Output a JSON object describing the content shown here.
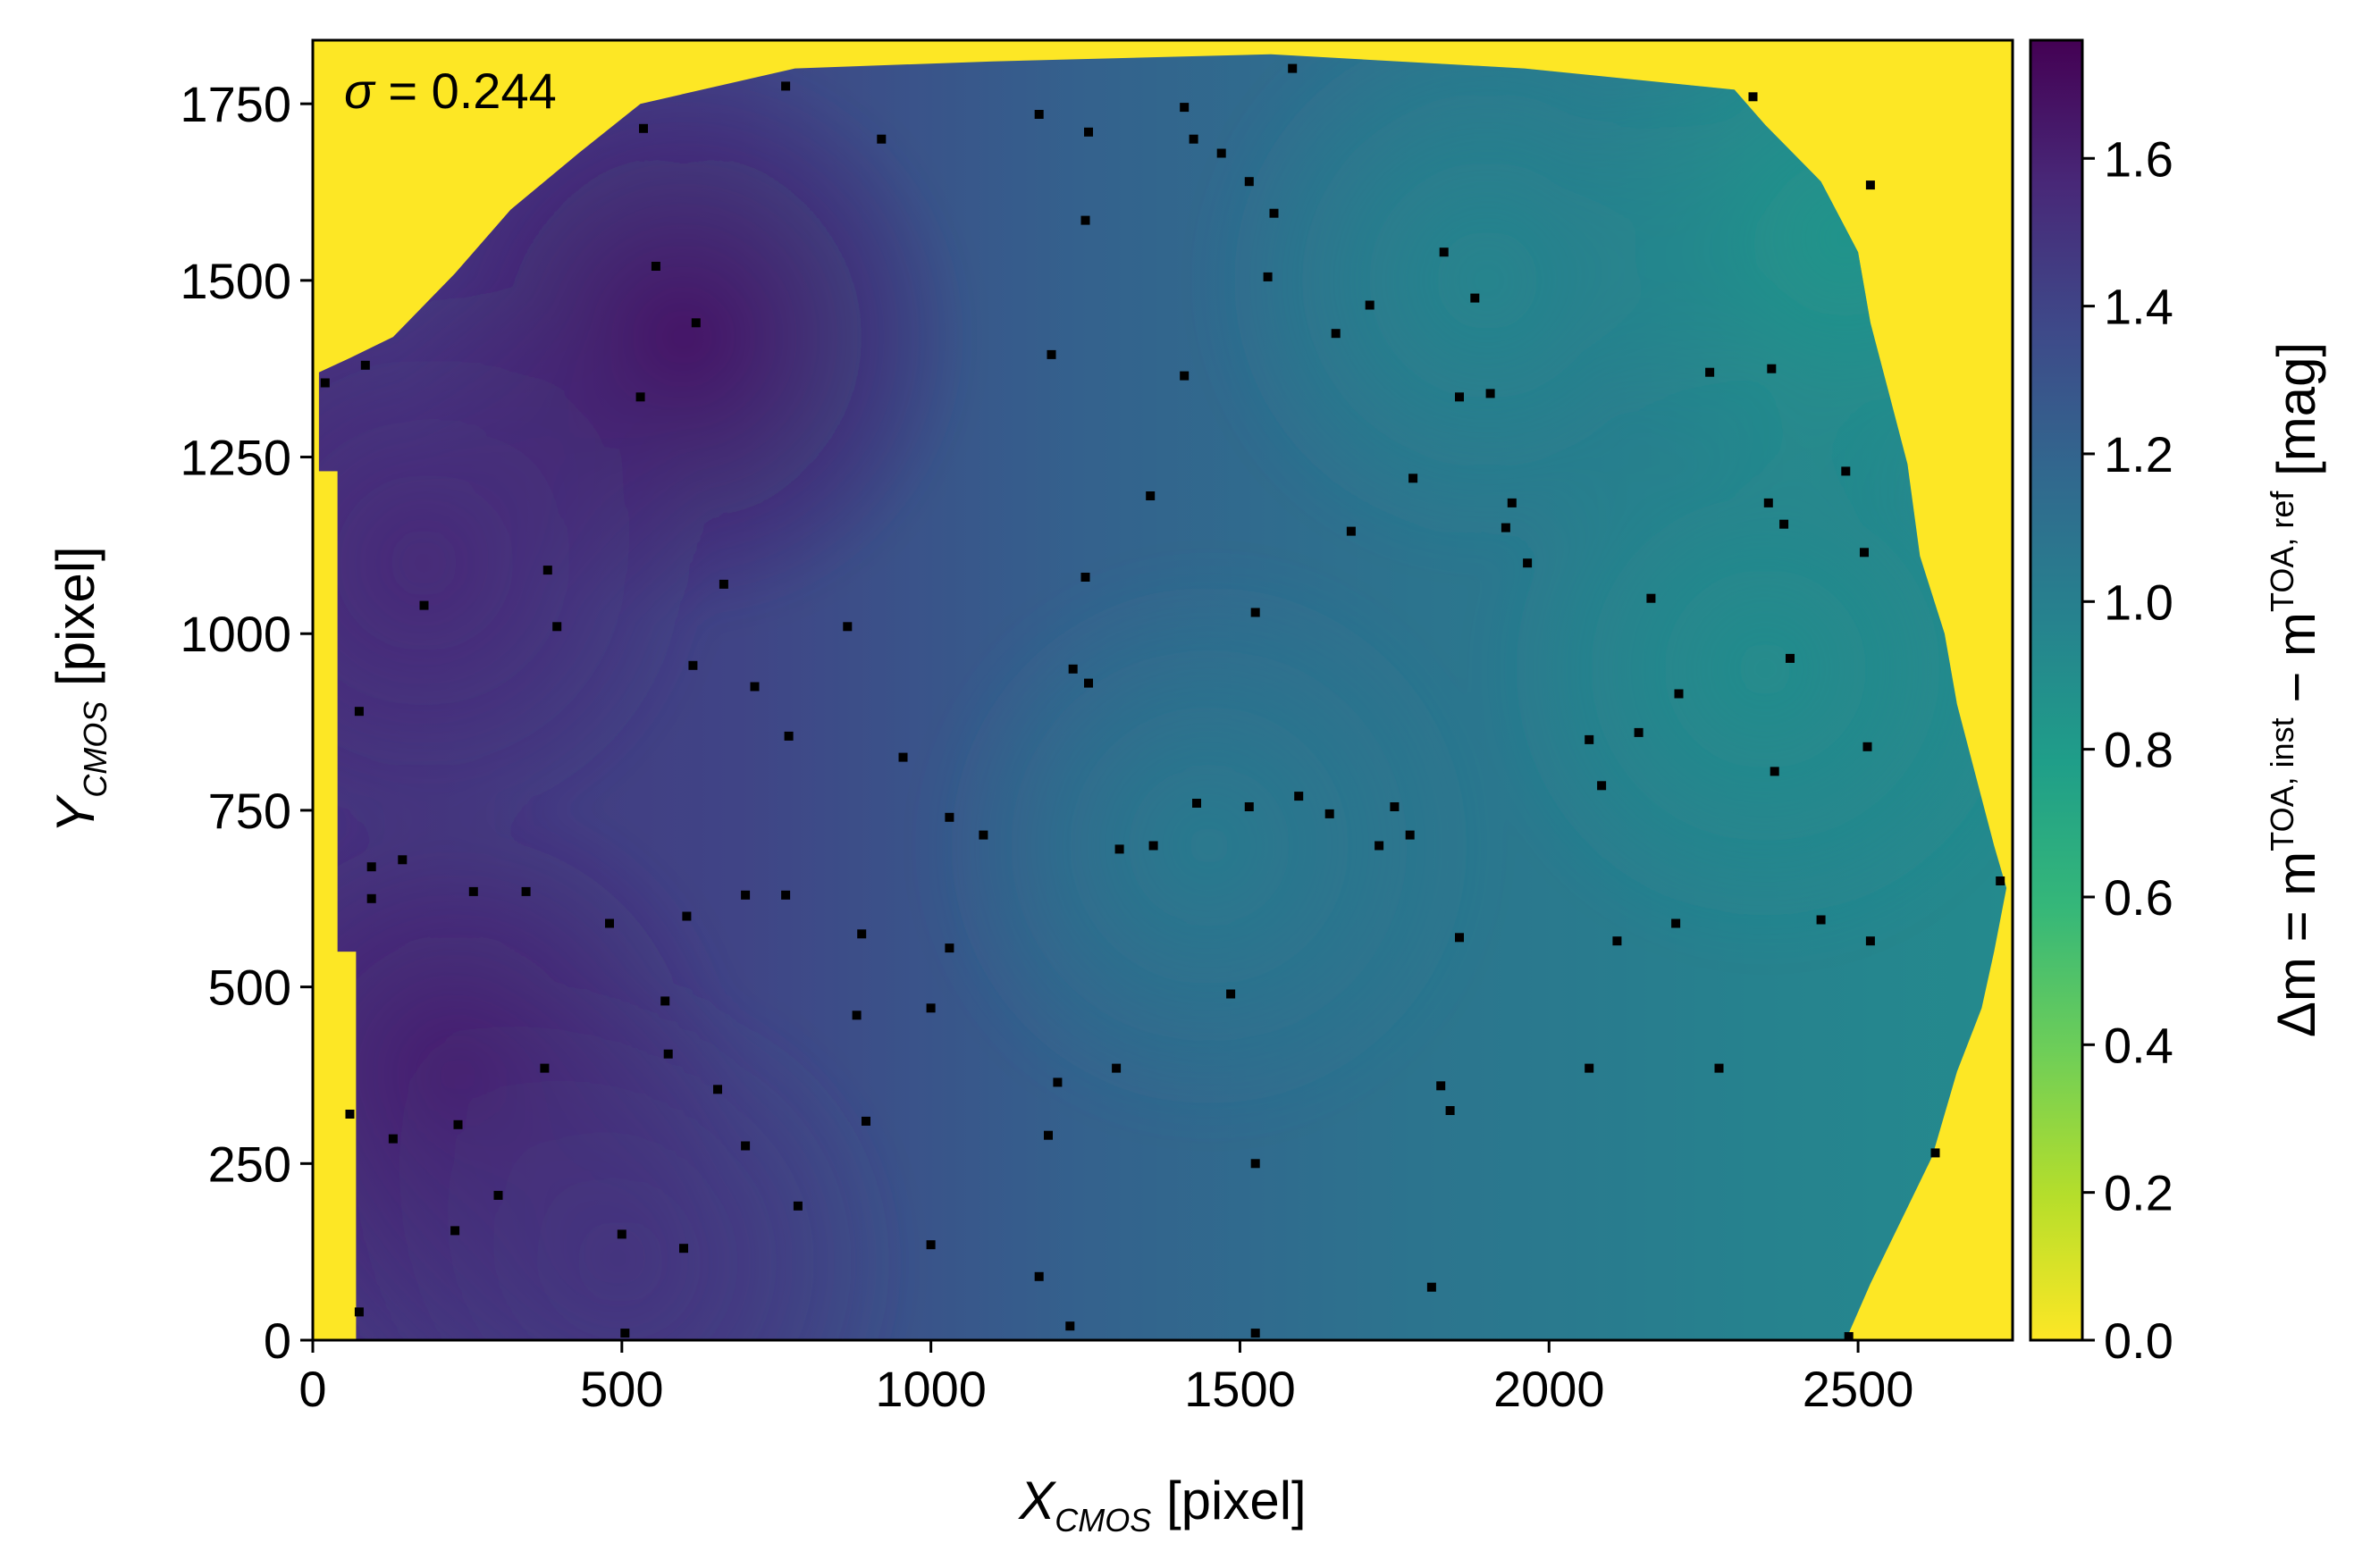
{
  "chart_data": {
    "type": "heatmap",
    "title": "",
    "annotation": {
      "symbol": "σ",
      "text": " = 0.244"
    },
    "xlabel": {
      "main": "X",
      "sub": "CMOS",
      "unit": " [pixel]"
    },
    "ylabel": {
      "main": "Y",
      "sub": "CMOS",
      "unit": " [pixel]"
    },
    "colorbar_label": {
      "prefix": "Δm = m",
      "sup1": "TOA, inst",
      "mid": " − m",
      "sup2": "TOA, ref",
      "suffix": " [mag]"
    },
    "xlim": [
      0,
      2750
    ],
    "ylim": [
      0,
      1840
    ],
    "xticks": [
      0,
      500,
      1000,
      1500,
      2000,
      2500
    ],
    "xtick_labels": [
      "0",
      "500",
      "1000",
      "1500",
      "2000",
      "2500"
    ],
    "yticks": [
      0,
      250,
      500,
      750,
      1000,
      1250,
      1500,
      1750
    ],
    "ytick_labels": [
      "0",
      "250",
      "500",
      "750",
      "1000",
      "1250",
      "1500",
      "1750"
    ],
    "colorbar": {
      "range": [
        0,
        1.76
      ],
      "ticks": [
        0.0,
        0.2,
        0.4,
        0.6,
        0.8,
        1.0,
        1.2,
        1.4,
        1.6
      ],
      "tick_labels": [
        "0.0",
        "0.2",
        "0.4",
        "0.6",
        "0.8",
        "1.0",
        "1.2",
        "1.4",
        "1.6"
      ],
      "colormap": "viridis_r",
      "stops": [
        "#fde725",
        "#b5de2b",
        "#6ece58",
        "#35b779",
        "#1f9e89",
        "#26828e",
        "#31688e",
        "#3e4989",
        "#482878",
        "#440154"
      ]
    },
    "background_value": 0.0,
    "field_model": {
      "description": "interpolated Δm across sensor footprint",
      "hotspots": [
        {
          "x": 600,
          "y": 1420,
          "value": 1.68
        },
        {
          "x": 230,
          "y": 380,
          "value": 1.62
        },
        {
          "x": 180,
          "y": 1100,
          "value": 1.56
        },
        {
          "x": 500,
          "y": 110,
          "value": 1.5
        },
        {
          "x": 2480,
          "y": 1560,
          "value": 0.84
        },
        {
          "x": 2350,
          "y": 950,
          "value": 0.9
        },
        {
          "x": 1900,
          "y": 1500,
          "value": 0.95
        },
        {
          "x": 1450,
          "y": 700,
          "value": 1.02
        }
      ]
    },
    "footprint_outline_data_units": [
      [
        70,
        0
      ],
      [
        2480,
        0
      ],
      [
        2520,
        80
      ],
      [
        2570,
        170
      ],
      [
        2620,
        260
      ],
      [
        2660,
        380
      ],
      [
        2700,
        470
      ],
      [
        2720,
        550
      ],
      [
        2740,
        640
      ],
      [
        2720,
        700
      ],
      [
        2690,
        800
      ],
      [
        2660,
        900
      ],
      [
        2640,
        1000
      ],
      [
        2600,
        1110
      ],
      [
        2580,
        1240
      ],
      [
        2550,
        1340
      ],
      [
        2520,
        1440
      ],
      [
        2500,
        1540
      ],
      [
        2440,
        1640
      ],
      [
        2350,
        1720
      ],
      [
        2300,
        1770
      ],
      [
        1960,
        1800
      ],
      [
        1550,
        1820
      ],
      [
        1100,
        1810
      ],
      [
        780,
        1800
      ],
      [
        530,
        1750
      ],
      [
        430,
        1680
      ],
      [
        320,
        1600
      ],
      [
        230,
        1510
      ],
      [
        130,
        1420
      ],
      [
        60,
        1390
      ],
      [
        10,
        1370
      ],
      [
        10,
        1230
      ],
      [
        40,
        1230
      ],
      [
        40,
        550
      ],
      [
        70,
        550
      ],
      [
        70,
        0
      ]
    ],
    "points": [
      {
        "x": 20,
        "y": 1355
      },
      {
        "x": 85,
        "y": 1380
      },
      {
        "x": 75,
        "y": 890
      },
      {
        "x": 95,
        "y": 670
      },
      {
        "x": 95,
        "y": 625
      },
      {
        "x": 145,
        "y": 680
      },
      {
        "x": 180,
        "y": 1040
      },
      {
        "x": 60,
        "y": 320
      },
      {
        "x": 75,
        "y": 40
      },
      {
        "x": 130,
        "y": 285
      },
      {
        "x": 235,
        "y": 305
      },
      {
        "x": 230,
        "y": 155
      },
      {
        "x": 260,
        "y": 635
      },
      {
        "x": 300,
        "y": 205
      },
      {
        "x": 345,
        "y": 635
      },
      {
        "x": 375,
        "y": 385
      },
      {
        "x": 380,
        "y": 1090
      },
      {
        "x": 395,
        "y": 1010
      },
      {
        "x": 480,
        "y": 590
      },
      {
        "x": 500,
        "y": 150
      },
      {
        "x": 505,
        "y": 10
      },
      {
        "x": 530,
        "y": 1335
      },
      {
        "x": 535,
        "y": 1715
      },
      {
        "x": 555,
        "y": 1520
      },
      {
        "x": 570,
        "y": 480
      },
      {
        "x": 575,
        "y": 405
      },
      {
        "x": 600,
        "y": 130
      },
      {
        "x": 605,
        "y": 600
      },
      {
        "x": 615,
        "y": 955
      },
      {
        "x": 620,
        "y": 1440
      },
      {
        "x": 655,
        "y": 355
      },
      {
        "x": 665,
        "y": 1070
      },
      {
        "x": 700,
        "y": 630
      },
      {
        "x": 700,
        "y": 275
      },
      {
        "x": 715,
        "y": 925
      },
      {
        "x": 765,
        "y": 630
      },
      {
        "x": 765,
        "y": 1775
      },
      {
        "x": 770,
        "y": 855
      },
      {
        "x": 785,
        "y": 190
      },
      {
        "x": 865,
        "y": 1010
      },
      {
        "x": 880,
        "y": 460
      },
      {
        "x": 888,
        "y": 575
      },
      {
        "x": 895,
        "y": 310
      },
      {
        "x": 920,
        "y": 1700
      },
      {
        "x": 955,
        "y": 825
      },
      {
        "x": 1000,
        "y": 470
      },
      {
        "x": 1000,
        "y": 135
      },
      {
        "x": 1030,
        "y": 555
      },
      {
        "x": 1030,
        "y": 740
      },
      {
        "x": 1085,
        "y": 715
      },
      {
        "x": 1175,
        "y": 1735
      },
      {
        "x": 1175,
        "y": 90
      },
      {
        "x": 1190,
        "y": 290
      },
      {
        "x": 1195,
        "y": 1395
      },
      {
        "x": 1205,
        "y": 365
      },
      {
        "x": 1225,
        "y": 20
      },
      {
        "x": 1230,
        "y": 950
      },
      {
        "x": 1250,
        "y": 1080
      },
      {
        "x": 1250,
        "y": 1585
      },
      {
        "x": 1255,
        "y": 1710
      },
      {
        "x": 1255,
        "y": 930
      },
      {
        "x": 1300,
        "y": 385
      },
      {
        "x": 1305,
        "y": 695
      },
      {
        "x": 1355,
        "y": 1195
      },
      {
        "x": 1360,
        "y": 700
      },
      {
        "x": 1410,
        "y": 1745
      },
      {
        "x": 1410,
        "y": 1365
      },
      {
        "x": 1425,
        "y": 1700
      },
      {
        "x": 1430,
        "y": 760
      },
      {
        "x": 1470,
        "y": 1680
      },
      {
        "x": 1485,
        "y": 490
      },
      {
        "x": 1515,
        "y": 1640
      },
      {
        "x": 1515,
        "y": 755
      },
      {
        "x": 1525,
        "y": 1030
      },
      {
        "x": 1525,
        "y": 250
      },
      {
        "x": 1525,
        "y": 10
      },
      {
        "x": 1545,
        "y": 1505
      },
      {
        "x": 1555,
        "y": 1595
      },
      {
        "x": 1585,
        "y": 1800
      },
      {
        "x": 1595,
        "y": 770
      },
      {
        "x": 1645,
        "y": 745
      },
      {
        "x": 1655,
        "y": 1425
      },
      {
        "x": 1680,
        "y": 1145
      },
      {
        "x": 1710,
        "y": 1465
      },
      {
        "x": 1725,
        "y": 700
      },
      {
        "x": 1750,
        "y": 755
      },
      {
        "x": 1775,
        "y": 715
      },
      {
        "x": 1780,
        "y": 1220
      },
      {
        "x": 1810,
        "y": 75
      },
      {
        "x": 1825,
        "y": 360
      },
      {
        "x": 1830,
        "y": 1540
      },
      {
        "x": 1840,
        "y": 325
      },
      {
        "x": 1855,
        "y": 1335
      },
      {
        "x": 1855,
        "y": 570
      },
      {
        "x": 1880,
        "y": 1475
      },
      {
        "x": 1905,
        "y": 1340
      },
      {
        "x": 1930,
        "y": 1150
      },
      {
        "x": 1940,
        "y": 1185
      },
      {
        "x": 1965,
        "y": 1100
      },
      {
        "x": 2065,
        "y": 850
      },
      {
        "x": 2065,
        "y": 385
      },
      {
        "x": 2085,
        "y": 785
      },
      {
        "x": 2110,
        "y": 565
      },
      {
        "x": 2145,
        "y": 860
      },
      {
        "x": 2165,
        "y": 1050
      },
      {
        "x": 2205,
        "y": 590
      },
      {
        "x": 2210,
        "y": 915
      },
      {
        "x": 2260,
        "y": 1370
      },
      {
        "x": 2275,
        "y": 385
      },
      {
        "x": 2330,
        "y": 1760
      },
      {
        "x": 2355,
        "y": 1185
      },
      {
        "x": 2360,
        "y": 1375
      },
      {
        "x": 2365,
        "y": 805
      },
      {
        "x": 2380,
        "y": 1155
      },
      {
        "x": 2390,
        "y": 965
      },
      {
        "x": 2440,
        "y": 595
      },
      {
        "x": 2480,
        "y": 1230
      },
      {
        "x": 2485,
        "y": 5
      },
      {
        "x": 2510,
        "y": 1115
      },
      {
        "x": 2515,
        "y": 840
      },
      {
        "x": 2520,
        "y": 565
      },
      {
        "x": 2520,
        "y": 1635
      },
      {
        "x": 2625,
        "y": 265
      },
      {
        "x": 2730,
        "y": 650
      }
    ]
  }
}
